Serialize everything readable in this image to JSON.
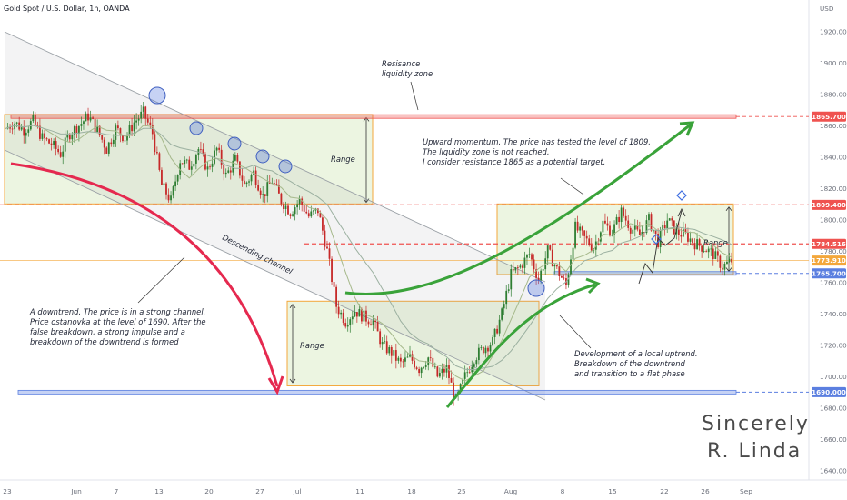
{
  "header": {
    "title": "Gold Spot / U.S. Dollar, 1h, OANDA",
    "currency": "USD"
  },
  "colors": {
    "up": "#26a69a",
    "down": "#ef5350",
    "candle": "#c62828",
    "range_fill": "#dcedc8",
    "range_border": "#f3a73b",
    "resistance": "#ef5350",
    "support": "#5b7fe0",
    "arrow_green": "#3aa33a",
    "arrow_red": "#e5294f",
    "channel": "#9aa0a6"
  },
  "chart_data": {
    "type": "candlestick",
    "symbol": "Gold Spot / U.S. Dollar",
    "timeframe": "1h",
    "source": "OANDA",
    "ylim": [
      1634,
      1940
    ],
    "y_ticks": [
      1640,
      1660,
      1680,
      1700,
      1720,
      1740,
      1760,
      1780,
      1800,
      1820,
      1840,
      1860,
      1880,
      1900,
      1920
    ],
    "x_ticks": [
      "23",
      "Jun",
      "7",
      "13",
      "20",
      "27",
      "Jul",
      "11",
      "18",
      "25",
      "Aug",
      "8",
      "15",
      "22",
      "26",
      "Sep"
    ],
    "price_path": [
      [
        0,
        1858
      ],
      [
        1,
        1862
      ],
      [
        2,
        1857
      ],
      [
        3,
        1863
      ],
      [
        4,
        1852
      ],
      [
        5,
        1848
      ],
      [
        6,
        1842
      ],
      [
        7,
        1855
      ],
      [
        8,
        1860
      ],
      [
        9,
        1866
      ],
      [
        10,
        1857
      ],
      [
        11,
        1845
      ],
      [
        12,
        1858
      ],
      [
        13,
        1852
      ],
      [
        14,
        1862
      ],
      [
        15,
        1868
      ],
      [
        16,
        1855
      ],
      [
        17,
        1822
      ],
      [
        18,
        1812
      ],
      [
        19,
        1838
      ],
      [
        20,
        1834
      ],
      [
        21,
        1845
      ],
      [
        22,
        1832
      ],
      [
        23,
        1845
      ],
      [
        24,
        1828
      ],
      [
        25,
        1838
      ],
      [
        26,
        1822
      ],
      [
        27,
        1830
      ],
      [
        28,
        1815
      ],
      [
        29,
        1825
      ],
      [
        30,
        1812
      ],
      [
        31,
        1805
      ],
      [
        32,
        1812
      ],
      [
        33,
        1802
      ],
      [
        34,
        1806
      ],
      [
        35,
        1780
      ],
      [
        36,
        1745
      ],
      [
        37,
        1735
      ],
      [
        38,
        1742
      ],
      [
        39,
        1738
      ],
      [
        40,
        1735
      ],
      [
        41,
        1720
      ],
      [
        42,
        1715
      ],
      [
        43,
        1708
      ],
      [
        44,
        1712
      ],
      [
        45,
        1705
      ],
      [
        46,
        1712
      ],
      [
        47,
        1700
      ],
      [
        48,
        1705
      ],
      [
        49,
        1684
      ],
      [
        50,
        1700
      ],
      [
        51,
        1712
      ],
      [
        52,
        1718
      ],
      [
        53,
        1722
      ],
      [
        54,
        1740
      ],
      [
        55,
        1765
      ],
      [
        56,
        1770
      ],
      [
        57,
        1778
      ],
      [
        58,
        1762
      ],
      [
        59,
        1780
      ],
      [
        60,
        1768
      ],
      [
        61,
        1758
      ],
      [
        62,
        1795
      ],
      [
        63,
        1788
      ],
      [
        64,
        1782
      ],
      [
        65,
        1798
      ],
      [
        66,
        1792
      ],
      [
        67,
        1805
      ],
      [
        68,
        1795
      ],
      [
        69,
        1790
      ],
      [
        70,
        1800
      ],
      [
        71,
        1786
      ],
      [
        72,
        1800
      ],
      [
        73,
        1792
      ],
      [
        74,
        1790
      ],
      [
        75,
        1785
      ],
      [
        76,
        1782
      ],
      [
        77,
        1778
      ],
      [
        78,
        1770
      ],
      [
        79,
        1773.7
      ]
    ],
    "horizontal_levels": [
      {
        "label": "1865.700",
        "value": 1865.7,
        "color": "#ef5350"
      },
      {
        "label": "1809.400",
        "value": 1809.4,
        "color": "#ef5350"
      },
      {
        "label": "1784.516",
        "value": 1784.516,
        "color": "#ef5350"
      },
      {
        "label": "1773.910",
        "value": 1773.91,
        "color": "#f3a73b"
      },
      {
        "label": "1765.700",
        "value": 1765.7,
        "color": "#5b7fe0"
      },
      {
        "label": "1690.000",
        "value": 1690.0,
        "color": "#5b7fe0"
      }
    ],
    "annotations": {
      "resistance_zone": [
        "Resisance",
        "liquidity zone"
      ],
      "upward_momentum": [
        "Upward momentum. The price has tested the level of 1809.",
        "The liquidity zone is not reached.",
        "I consider resistance 1865 as a potential target."
      ],
      "downtrend": [
        "A downtrend. The price is in a strong channel.",
        "Price ostanovka at the level of 1690. After the",
        "false breakdown, a strong impulse and a",
        "breakdown of the downtrend is formed"
      ],
      "local_uptrend": [
        "Development of a local uptrend.",
        "Breakdown of the downtrend",
        "and transition to a flat phase"
      ],
      "descending_channel": "Descending channel",
      "range_label": "Range"
    },
    "signature": [
      "Sincerely",
      "R. Linda"
    ]
  }
}
